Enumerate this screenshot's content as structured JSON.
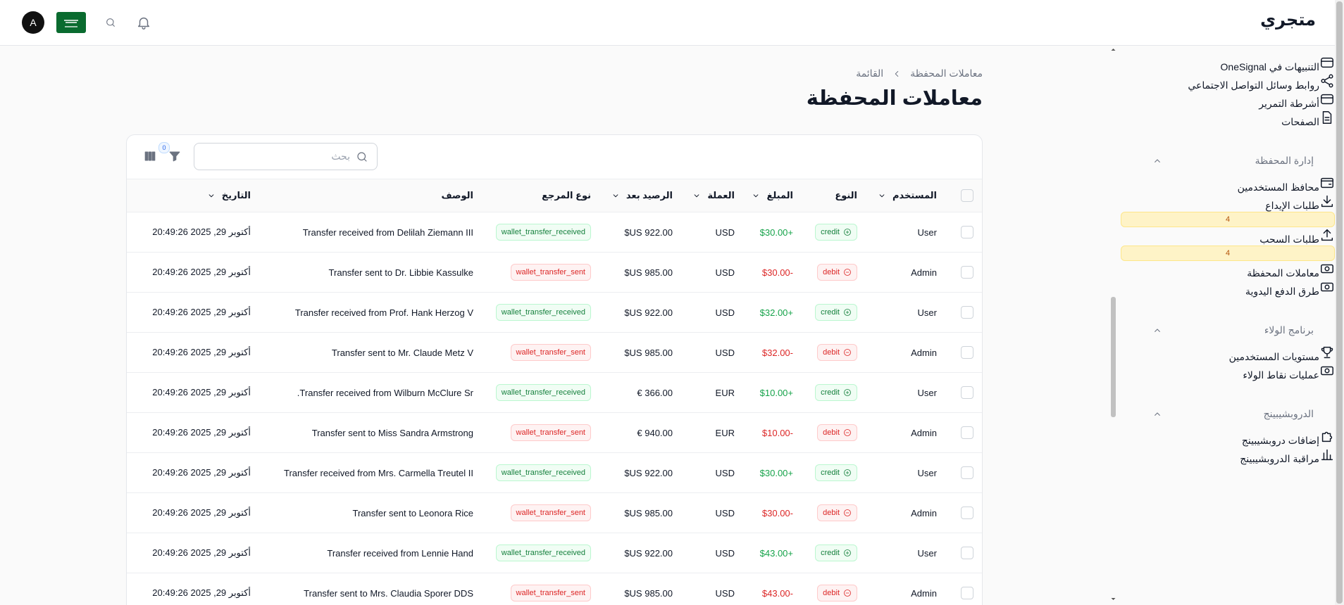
{
  "header": {
    "brand": "متجري",
    "avatar": "A"
  },
  "sidebar": {
    "top_items": [
      {
        "label": "التنبيهات في OneSignal"
      },
      {
        "label": "روابط وسائل التواصل الاجتماعي"
      },
      {
        "label": "أشرطة التمرير"
      },
      {
        "label": "الصفحات"
      }
    ],
    "groups": [
      {
        "label": "إدارة المحفظة",
        "items": [
          {
            "label": "محافظ المستخدمين"
          },
          {
            "label": "طلبات الإيداع",
            "badge": 4
          },
          {
            "label": "طلبات السحب",
            "badge": 4
          },
          {
            "label": "معاملات المحفظة",
            "active": true
          },
          {
            "label": "طرق الدفع اليدوية"
          }
        ]
      },
      {
        "label": "برنامج الولاء",
        "items": [
          {
            "label": "مستويات المستخدمين"
          },
          {
            "label": "عمليات نقاط الولاء"
          }
        ]
      },
      {
        "label": "الدروبشيبينج",
        "items": [
          {
            "label": "إضافات دروبشيبينج"
          },
          {
            "label": "مراقبة الدروبشيبينج"
          }
        ]
      }
    ]
  },
  "breadcrumb": [
    "معاملات المحفظة",
    "القائمة"
  ],
  "page_title": "معاملات المحفظة",
  "table": {
    "search_placeholder": "بحث",
    "filter_count": 0,
    "columns": [
      "المستخدم",
      "النوع",
      "المبلغ",
      "العملة",
      "الرصيد بعد",
      "نوع المرجع",
      "الوصف",
      "التاريخ"
    ],
    "rows": [
      [
        "User",
        "credit",
        "+$30.00",
        "USD",
        "922.00 US$",
        "wallet_transfer_received",
        "Transfer received from Delilah Ziemann III",
        "أكتوبر 29, 2025 20:49:26"
      ],
      [
        "Admin",
        "debit",
        "-$30.00",
        "USD",
        "985.00 US$",
        "wallet_transfer_sent",
        "Transfer sent to Dr. Libbie Kassulke",
        "أكتوبر 29, 2025 20:49:26"
      ],
      [
        "User",
        "credit",
        "+$32.00",
        "USD",
        "922.00 US$",
        "wallet_transfer_received",
        "Transfer received from Prof. Hank Herzog V",
        "أكتوبر 29, 2025 20:49:26"
      ],
      [
        "Admin",
        "debit",
        "-$32.00",
        "USD",
        "985.00 US$",
        "wallet_transfer_sent",
        "Transfer sent to Mr. Claude Metz V",
        "أكتوبر 29, 2025 20:49:26"
      ],
      [
        "User",
        "credit",
        "+$10.00",
        "EUR",
        "366.00 €",
        "wallet_transfer_received",
        "Transfer received from Wilburn McClure Sr.",
        "أكتوبر 29, 2025 20:49:26"
      ],
      [
        "Admin",
        "debit",
        "-$10.00",
        "EUR",
        "940.00 €",
        "wallet_transfer_sent",
        "Transfer sent to Miss Sandra Armstrong",
        "أكتوبر 29, 2025 20:49:26"
      ],
      [
        "User",
        "credit",
        "+$30.00",
        "USD",
        "922.00 US$",
        "wallet_transfer_received",
        "Transfer received from Mrs. Carmella Treutel II",
        "أكتوبر 29, 2025 20:49:26"
      ],
      [
        "Admin",
        "debit",
        "-$30.00",
        "USD",
        "985.00 US$",
        "wallet_transfer_sent",
        "Transfer sent to Leonora Rice",
        "أكتوبر 29, 2025 20:49:26"
      ],
      [
        "User",
        "credit",
        "+$43.00",
        "USD",
        "922.00 US$",
        "wallet_transfer_received",
        "Transfer received from Lennie Hand",
        "أكتوبر 29, 2025 20:49:26"
      ],
      [
        "Admin",
        "debit",
        "-$43.00",
        "USD",
        "985.00 US$",
        "wallet_transfer_sent",
        "Transfer sent to Mrs. Claudia Sporer DDS",
        "أكتوبر 29, 2025 20:49:26"
      ]
    ]
  }
}
